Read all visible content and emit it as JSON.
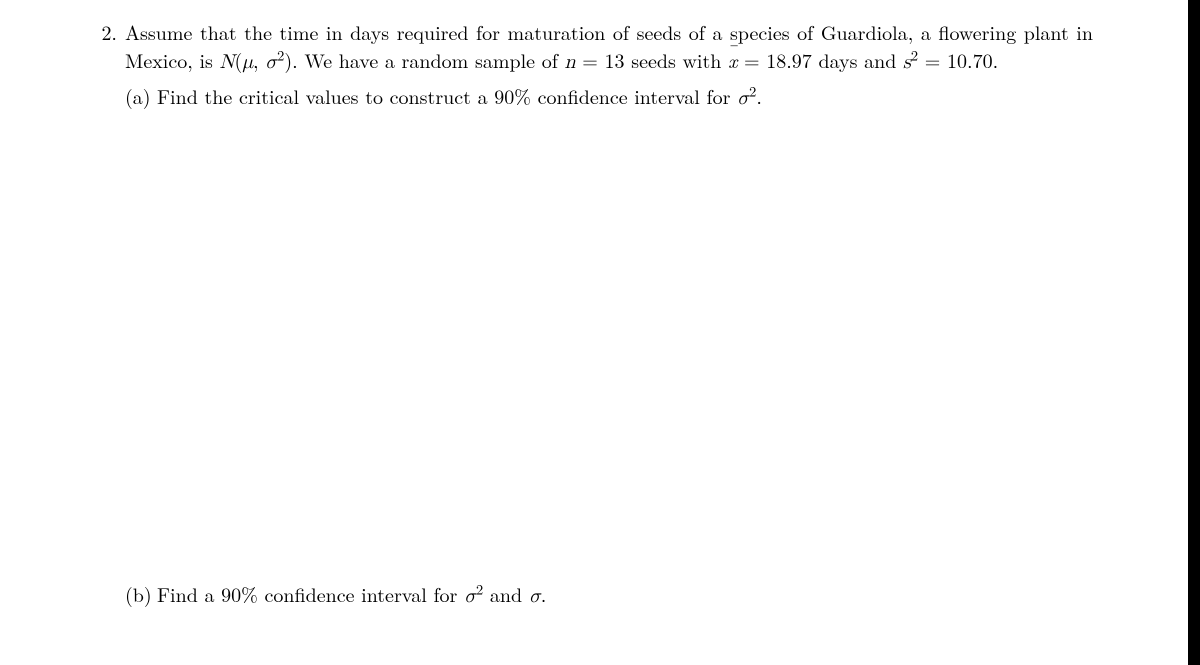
{
  "document": {
    "background_color": "#000000",
    "page_color": "#ffffff",
    "text_color": "#000000",
    "font_family": "Latin Modern Roman",
    "font_size_pt": 20
  },
  "problem": {
    "number": "2.",
    "intro_part1": "Assume that the time in days required for maturation of seeds of a species of Guardiola, a flowering plant in Mexico, is ",
    "distribution": "N(μ, σ²)",
    "intro_part2": ". We have a random sample of ",
    "n_var": "n",
    "equals1": " = ",
    "n_value": "13",
    "intro_part3": " seeds with ",
    "xbar_var": "x̄",
    "equals2": " = ",
    "xbar_value": "18.97",
    "intro_part4": " days and ",
    "s2_var": "s²",
    "equals3": " = ",
    "s2_value": "10.70",
    "intro_end": ".",
    "parts": {
      "a": {
        "label": "(a)",
        "text_part1": "Find the critical values to construct a 90% confidence interval for ",
        "sigma2": "σ²",
        "text_end": "."
      },
      "b": {
        "label": "(b)",
        "text_part1": "Find a 90% confidence interval for ",
        "sigma2": "σ²",
        "text_part2": " and ",
        "sigma": "σ",
        "text_end": "."
      }
    }
  }
}
